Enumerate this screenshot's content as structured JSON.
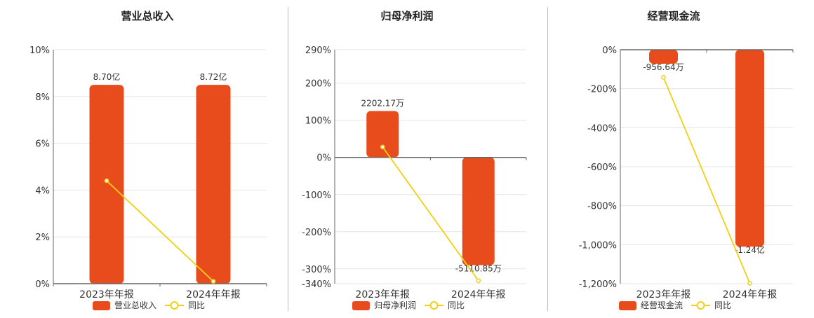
{
  "colors": {
    "bar": "#e84c1c",
    "line": "#f2cf14",
    "grid": "#e5e5e5",
    "axis": "#666666",
    "text": "#333333"
  },
  "legend_labels": {
    "yoy": "同比"
  },
  "chart_data": [
    {
      "type": "bar",
      "title": "营业总收入",
      "categories": [
        "2023年年报",
        "2024年年报"
      ],
      "y_ticks": [
        "0%",
        "2%",
        "4%",
        "6%",
        "8%",
        "10%"
      ],
      "ylim": [
        0,
        10
      ],
      "legend": [
        "营业总收入",
        "同比"
      ],
      "series": [
        {
          "name": "营业总收入",
          "kind": "bar",
          "values": [
            8.5,
            8.5
          ],
          "labels": [
            "8.70亿",
            "8.72亿"
          ]
        },
        {
          "name": "同比",
          "kind": "line",
          "values": [
            4.4,
            0.1
          ]
        }
      ]
    },
    {
      "type": "bar",
      "title": "归母净利润",
      "categories": [
        "2023年年报",
        "2024年年报"
      ],
      "y_ticks": [
        "-340%",
        "-300%",
        "-200%",
        "-100%",
        "0%",
        "100%",
        "200%",
        "290%"
      ],
      "ylim": [
        -340,
        290
      ],
      "legend": [
        "归母净利润",
        "同比"
      ],
      "series": [
        {
          "name": "归母净利润",
          "kind": "bar",
          "values": [
            125,
            -290
          ],
          "labels": [
            "2202.17万",
            "-5110.85万"
          ]
        },
        {
          "name": "同比",
          "kind": "line",
          "values": [
            28,
            -332
          ]
        }
      ]
    },
    {
      "type": "bar",
      "title": "经营现金流",
      "categories": [
        "2023年年报",
        "2024年年报"
      ],
      "y_ticks": [
        "-1,200%",
        "-1,000%",
        "-800%",
        "-600%",
        "-400%",
        "-200%",
        "0%"
      ],
      "ylim": [
        -1200,
        0
      ],
      "legend": [
        "经营现金流",
        "同比"
      ],
      "series": [
        {
          "name": "经营现金流",
          "kind": "bar",
          "values": [
            -72,
            -1010
          ],
          "labels": [
            "-956.64万",
            "-1.24亿"
          ]
        },
        {
          "name": "同比",
          "kind": "line",
          "values": [
            -142,
            -1198
          ]
        }
      ]
    }
  ]
}
